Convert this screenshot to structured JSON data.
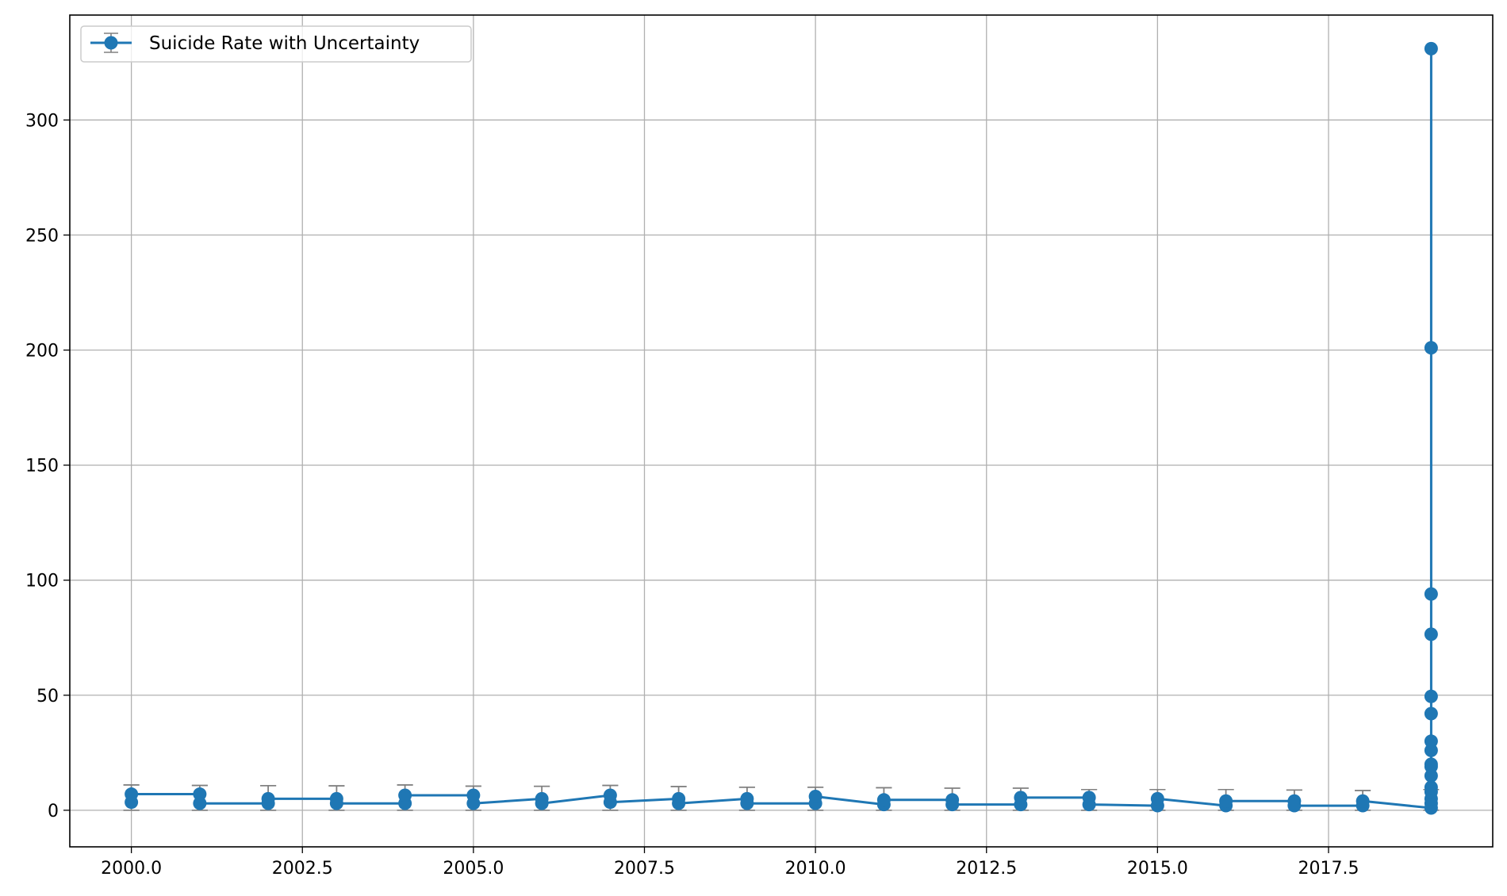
{
  "chart_data": {
    "type": "line",
    "title": "",
    "xlabel": "",
    "ylabel": "",
    "xlim": [
      1999.1,
      2019.9
    ],
    "ylim": [
      -15.9,
      345.6
    ],
    "xticks": [
      2000.0,
      2002.5,
      2005.0,
      2007.5,
      2010.0,
      2012.5,
      2015.0,
      2017.5
    ],
    "xtick_labels": [
      "2000.0",
      "2002.5",
      "2005.0",
      "2007.5",
      "2010.0",
      "2012.5",
      "2015.0",
      "2017.5"
    ],
    "yticks": [
      0,
      50,
      100,
      150,
      200,
      250,
      300
    ],
    "ytick_labels": [
      "0",
      "50",
      "100",
      "150",
      "200",
      "250",
      "300"
    ],
    "grid": true,
    "legend": {
      "position": "top-left",
      "entries": [
        "Suicide Rate with Uncertainty"
      ]
    },
    "series": [
      {
        "name": "Suicide Rate with Uncertainty",
        "color": "#1f77b4",
        "errorbar_color": "#808080",
        "error_cap_upper": 11.0,
        "error_cap_lower": 0.0,
        "x": [
          2000,
          2000,
          2001,
          2001,
          2002,
          2002,
          2003,
          2003,
          2004,
          2004,
          2005,
          2005,
          2006,
          2006,
          2007,
          2007,
          2008,
          2008,
          2009,
          2009,
          2010,
          2010,
          2011,
          2011,
          2012,
          2012,
          2013,
          2013,
          2014,
          2014,
          2015,
          2015,
          2016,
          2016,
          2017,
          2017,
          2018,
          2018,
          2019,
          2019,
          2019,
          2019,
          2019,
          2019,
          2019,
          2019,
          2019,
          2019,
          2019,
          2019,
          2019,
          2019,
          2019
        ],
        "y": [
          3.5,
          7.0,
          7.0,
          3.0,
          3.0,
          5.0,
          5.0,
          3.0,
          3.0,
          6.5,
          6.5,
          3.0,
          5.0,
          3.0,
          6.5,
          3.5,
          5.0,
          3.0,
          5.0,
          3.0,
          3.0,
          6.0,
          2.5,
          4.5,
          4.5,
          2.5,
          2.5,
          5.5,
          5.5,
          2.5,
          2.0,
          5.0,
          2.0,
          4.0,
          4.0,
          2.0,
          2.0,
          4.0,
          1.0,
          3.0,
          5.0,
          8.0,
          10.0,
          15.0,
          19.0,
          20.0,
          26.0,
          30.0,
          42.0,
          49.5,
          76.5,
          94.0,
          331.0
        ],
        "errorbar_x": [
          2000,
          2000,
          2001,
          2001,
          2002,
          2002,
          2003,
          2003,
          2004,
          2004,
          2005,
          2005,
          2006,
          2006,
          2007,
          2007,
          2008,
          2008,
          2009,
          2009,
          2010,
          2010,
          2011,
          2011,
          2012,
          2012,
          2013,
          2013,
          2014,
          2014,
          2015,
          2015,
          2016,
          2016,
          2017,
          2017,
          2018,
          2018,
          2019
        ],
        "errorbar_top": [
          11.0,
          11.0,
          10.8,
          10.8,
          10.7,
          10.7,
          10.6,
          10.6,
          11.0,
          11.0,
          10.5,
          10.5,
          10.4,
          10.4,
          10.8,
          10.8,
          10.3,
          10.3,
          10.0,
          10.0,
          10.0,
          10.0,
          9.8,
          9.8,
          9.6,
          9.6,
          9.6,
          9.6,
          9.0,
          9.0,
          9.0,
          9.0,
          9.0,
          9.0,
          8.8,
          8.8,
          8.6,
          8.6,
          9.0
        ],
        "errorbar_bottom": [
          0,
          0,
          0,
          0,
          0,
          0,
          0,
          0,
          0,
          0,
          0,
          0,
          0,
          0,
          0,
          0,
          0,
          0,
          0,
          0,
          0,
          0,
          0,
          0,
          0,
          0,
          0,
          0,
          0,
          0,
          0,
          0,
          0,
          0,
          0,
          0,
          0,
          0,
          0
        ]
      }
    ],
    "extra_point": {
      "x": 2019,
      "y": 201.0
    }
  }
}
